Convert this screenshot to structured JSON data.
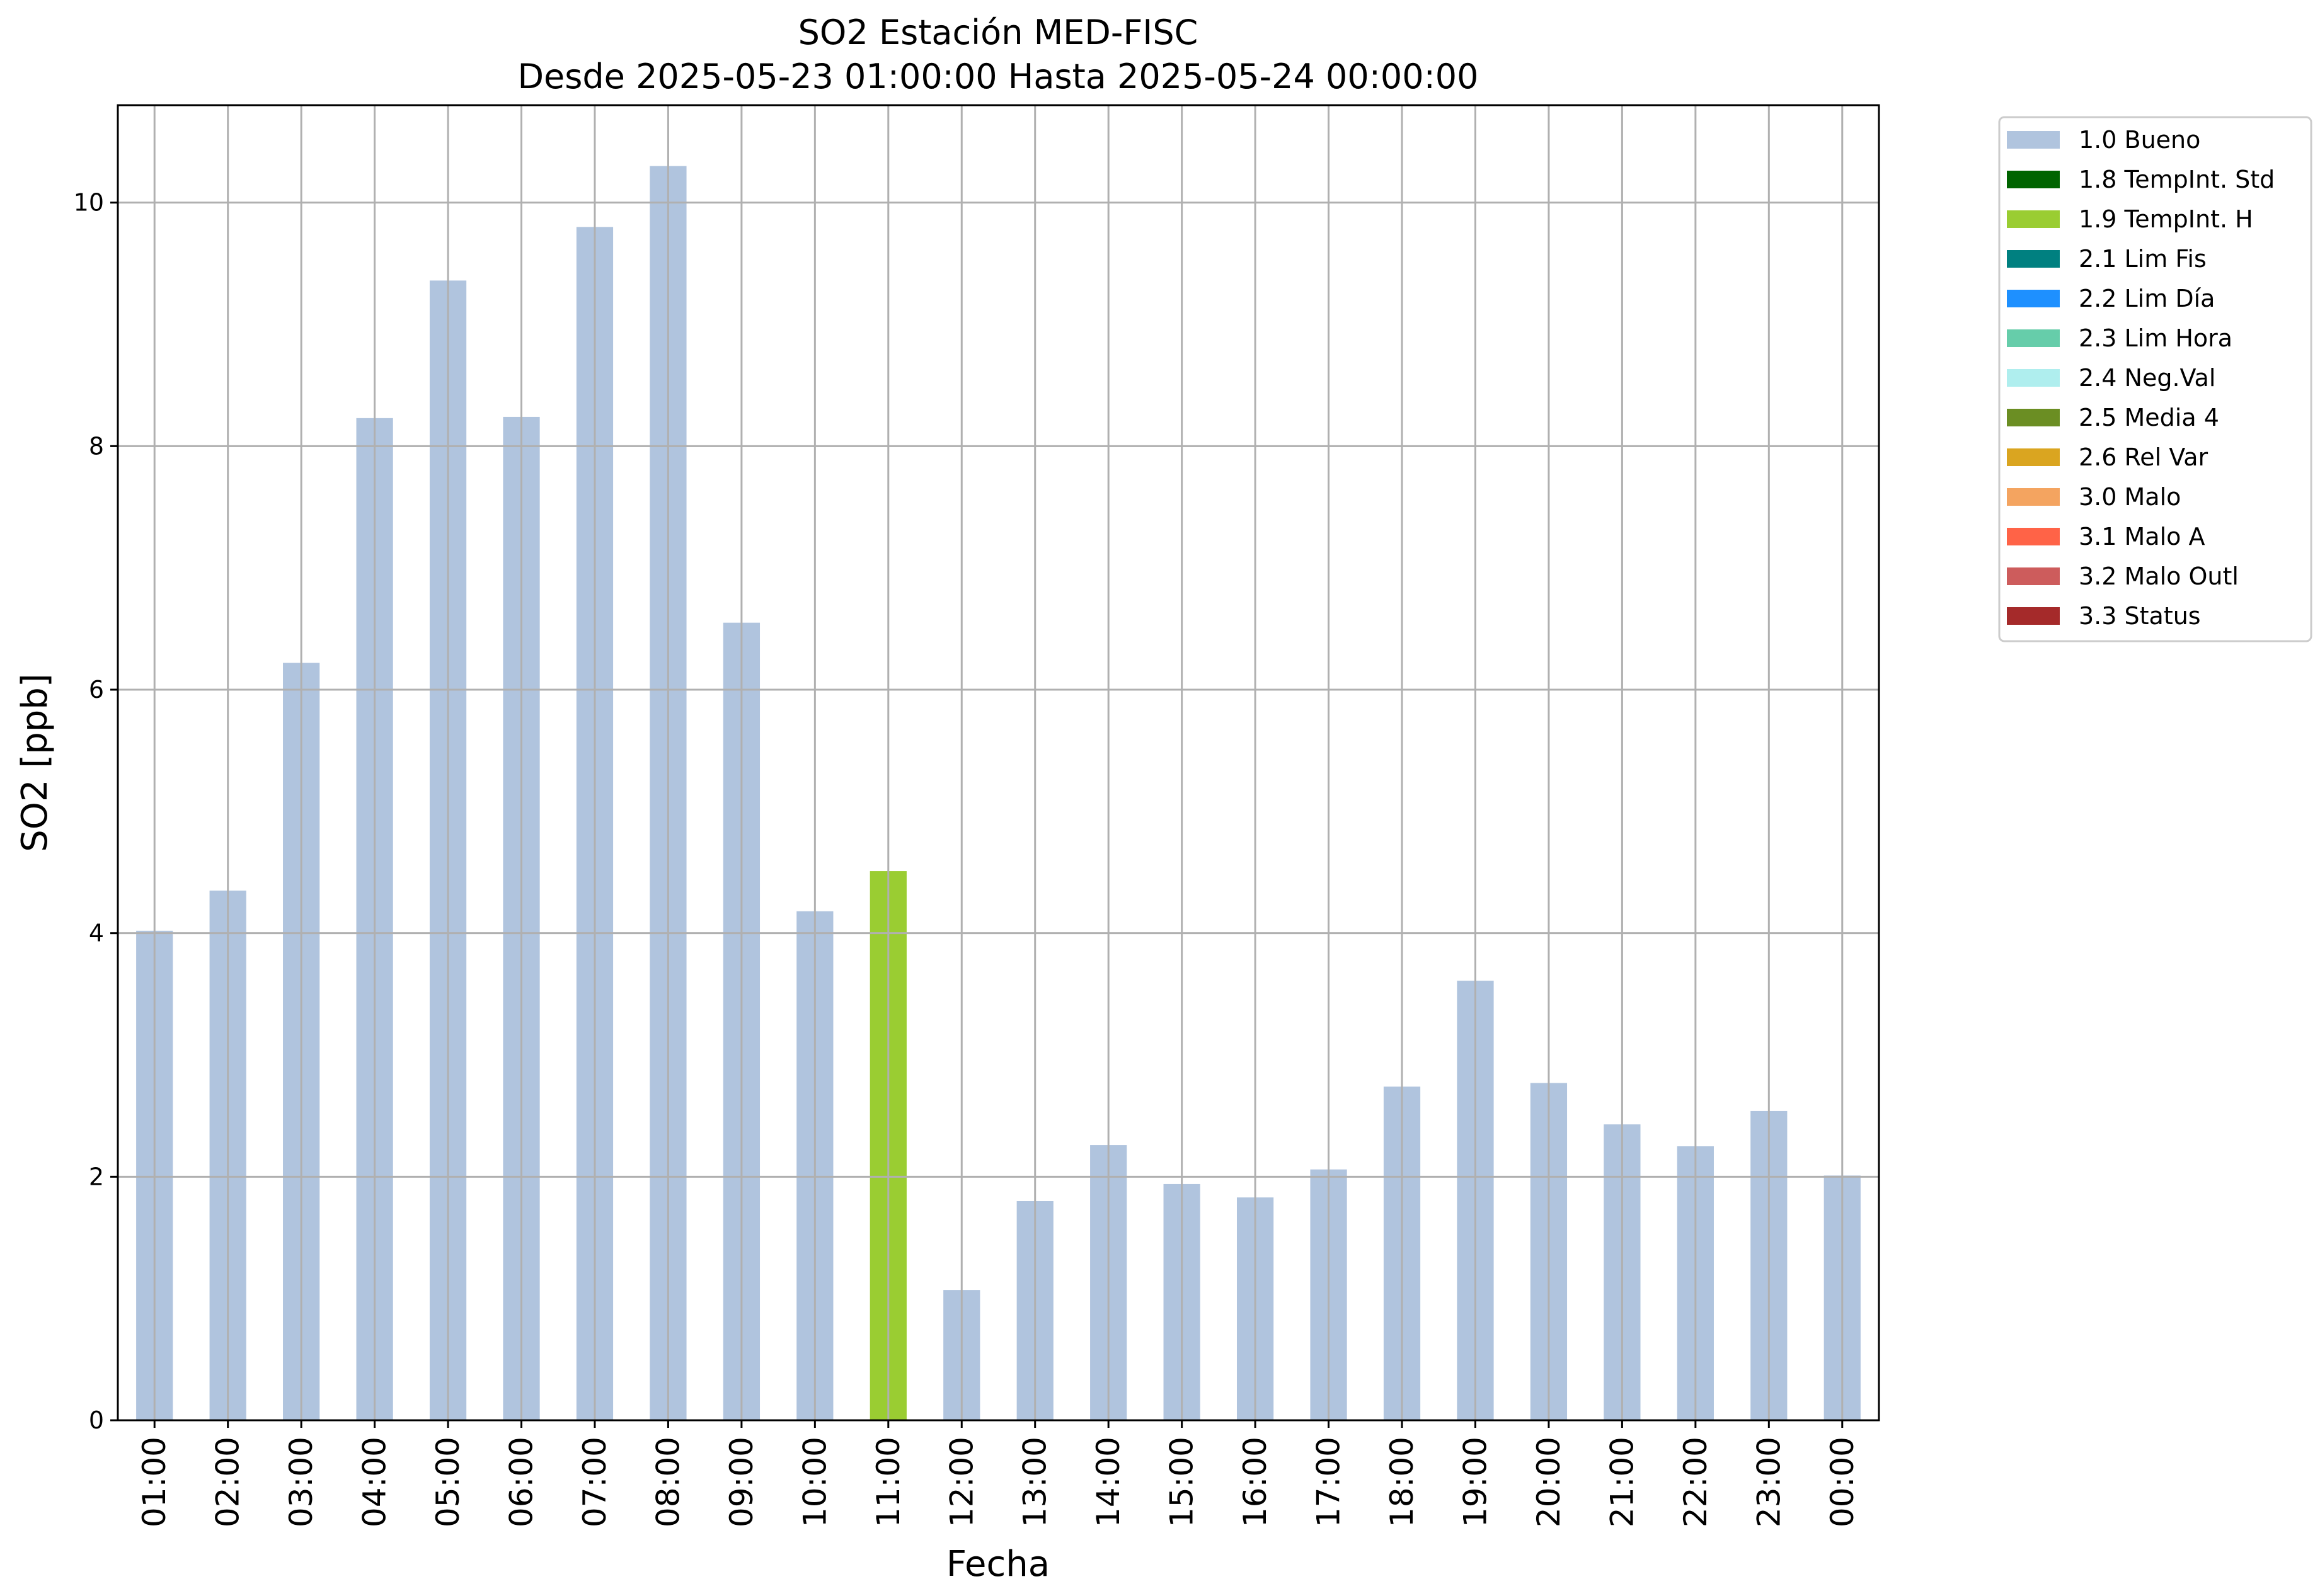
{
  "chart_data": {
    "type": "bar",
    "title": "SO2 Estación MED-FISC",
    "subtitle": "Desde 2025-05-23 01:00:00 Hasta 2025-05-24 00:00:00",
    "xlabel": "Fecha",
    "ylabel": "SO2 [ppb]",
    "ylim": [
      0,
      10.8
    ],
    "yticks": [
      0,
      2,
      4,
      6,
      8,
      10
    ],
    "grid": true,
    "legend_position": "outside-top-right",
    "categories": [
      "01:00",
      "02:00",
      "03:00",
      "04:00",
      "05:00",
      "06:00",
      "07:00",
      "08:00",
      "09:00",
      "10:00",
      "11:00",
      "12:00",
      "13:00",
      "14:00",
      "15:00",
      "16:00",
      "17:00",
      "18:00",
      "19:00",
      "20:00",
      "21:00",
      "22:00",
      "23:00",
      "00:00"
    ],
    "values": [
      4.02,
      4.35,
      6.22,
      8.23,
      9.36,
      8.24,
      9.8,
      10.3,
      6.55,
      4.18,
      4.51,
      1.07,
      1.8,
      2.26,
      1.94,
      1.83,
      2.06,
      2.74,
      3.61,
      2.77,
      2.43,
      2.25,
      2.54,
      2.01
    ],
    "bar_flags": [
      "1.0 Bueno",
      "1.0 Bueno",
      "1.0 Bueno",
      "1.0 Bueno",
      "1.0 Bueno",
      "1.0 Bueno",
      "1.0 Bueno",
      "1.0 Bueno",
      "1.0 Bueno",
      "1.0 Bueno",
      "1.9 TempInt. H",
      "1.0 Bueno",
      "1.0 Bueno",
      "1.0 Bueno",
      "1.0 Bueno",
      "1.0 Bueno",
      "1.0 Bueno",
      "1.0 Bueno",
      "1.0 Bueno",
      "1.0 Bueno",
      "1.0 Bueno",
      "1.0 Bueno",
      "1.0 Bueno",
      "1.0 Bueno"
    ],
    "legend": [
      {
        "label": "1.0 Bueno",
        "color": "#b0c4de"
      },
      {
        "label": "1.8 TempInt. Std",
        "color": "#006400"
      },
      {
        "label": "1.9 TempInt. H",
        "color": "#9acd32"
      },
      {
        "label": "2.1 Lim Fis",
        "color": "#008080"
      },
      {
        "label": "2.2 Lim Día",
        "color": "#1e90ff"
      },
      {
        "label": "2.3 Lim Hora",
        "color": "#66cdaa"
      },
      {
        "label": "2.4 Neg.Val",
        "color": "#afeeee"
      },
      {
        "label": "2.5 Media 4",
        "color": "#6b8e23"
      },
      {
        "label": "2.6 Rel Var",
        "color": "#daa520"
      },
      {
        "label": "3.0 Malo",
        "color": "#f4a460"
      },
      {
        "label": "3.1 Malo A",
        "color": "#ff6347"
      },
      {
        "label": "3.2 Malo Outl",
        "color": "#cd5c5c"
      },
      {
        "label": "3.3 Status",
        "color": "#a52a2a"
      }
    ]
  }
}
